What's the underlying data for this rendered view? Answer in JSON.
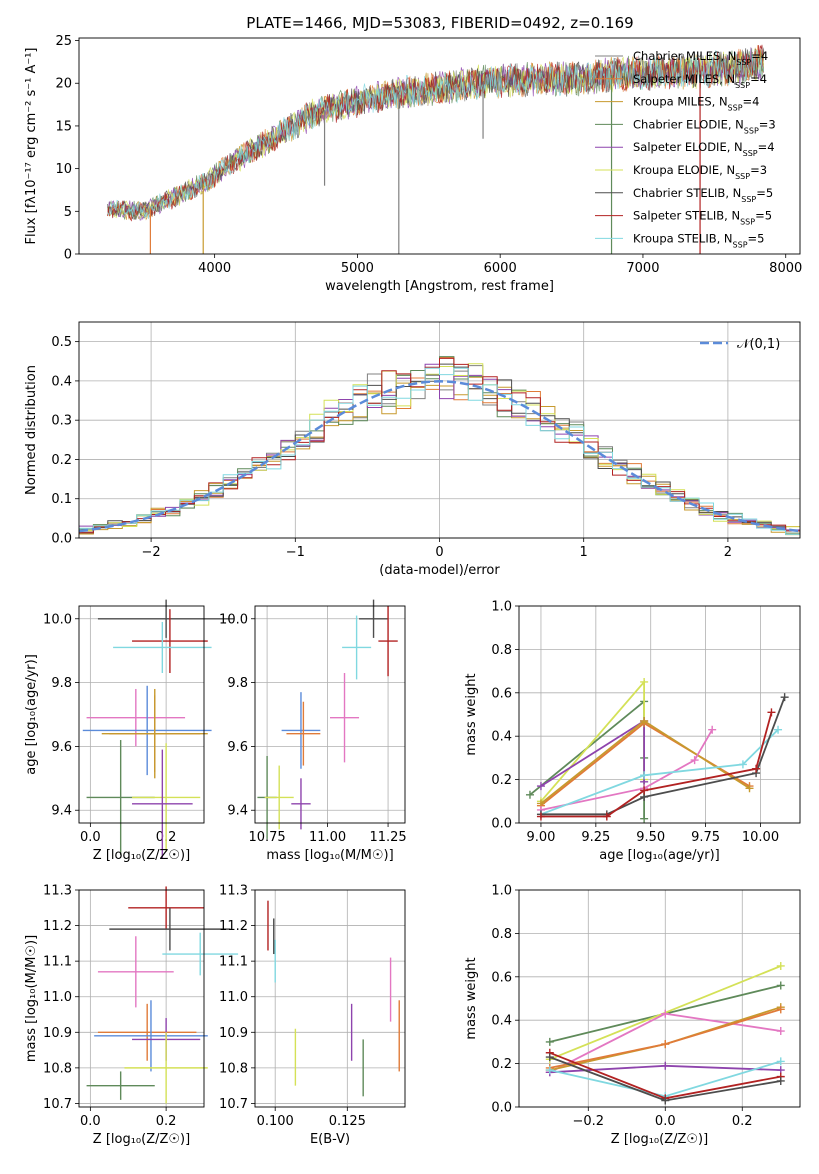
{
  "figure": {
    "title": "PLATE=1466, MJD=53083, FIBERID=0492, z=0.169"
  },
  "chart_data": [
    {
      "id": "spectrum",
      "type": "line",
      "xlabel": "wavelength [Angstrom, rest frame]",
      "ylabel": "Flux [fλ10⁻¹⁷ erg cm⁻² s⁻¹ A⁻¹]",
      "xlim": [
        3050,
        8100
      ],
      "ylim": [
        0,
        25.3
      ],
      "xticks": [
        4000,
        5000,
        6000,
        7000,
        8000
      ],
      "yticks": [
        0,
        5,
        10,
        15,
        20,
        25
      ],
      "legend_position": "upper right",
      "series": [
        {
          "name": "Chabrier MILES, N_SSP=4",
          "color": "#808080"
        },
        {
          "name": "Salpeter MILES, N_SSP=4",
          "color": "#e07b39"
        },
        {
          "name": "Kroupa MILES, N_SSP=4",
          "color": "#c79a2e"
        },
        {
          "name": "Chabrier ELODIE, N_SSP=3",
          "color": "#5f8a5a"
        },
        {
          "name": "Salpeter ELODIE, N_SSP=4",
          "color": "#8e44ad"
        },
        {
          "name": "Kroupa ELODIE, N_SSP=3",
          "color": "#d4e157"
        },
        {
          "name": "Chabrier STELIB, N_SSP=5",
          "color": "#4d4d4d"
        },
        {
          "name": "Salpeter STELIB, N_SSP=5",
          "color": "#b22222"
        },
        {
          "name": "Kroupa STELIB, N_SSP=5",
          "color": "#80d8e0"
        }
      ],
      "continuum_points": [
        [
          3250,
          5.3
        ],
        [
          3500,
          5.0
        ],
        [
          3700,
          6.5
        ],
        [
          3950,
          8.5
        ],
        [
          4100,
          10.5
        ],
        [
          4300,
          12.5
        ],
        [
          4500,
          14.5
        ],
        [
          4700,
          16.5
        ],
        [
          4900,
          17.5
        ],
        [
          5100,
          18.2
        ],
        [
          5300,
          18.8
        ],
        [
          5600,
          19.5
        ],
        [
          5900,
          20.2
        ],
        [
          6200,
          20.5
        ],
        [
          6500,
          20.5
        ],
        [
          6800,
          21.0
        ],
        [
          7100,
          21.2
        ],
        [
          7400,
          21.5
        ],
        [
          7700,
          22.0
        ],
        [
          7850,
          22.5
        ]
      ],
      "spikes": [
        {
          "x": 3550,
          "y": 0,
          "color": "#e07b39"
        },
        {
          "x": 3920,
          "y": 0,
          "color": "#c79a2e"
        },
        {
          "x": 5290,
          "y": 0,
          "color": "#808080"
        },
        {
          "x": 6780,
          "y": 0,
          "color": "#5f8a5a"
        },
        {
          "x": 7400,
          "y": 0,
          "color": "#b22222"
        },
        {
          "x": 4770,
          "y": 8,
          "color": "#808080"
        },
        {
          "x": 5880,
          "y": 13.5,
          "color": "#808080"
        }
      ]
    },
    {
      "id": "residuals",
      "type": "line",
      "xlabel": "(data-model)/error",
      "ylabel": "Normed distribution",
      "xlim": [
        -2.5,
        2.5
      ],
      "ylim": [
        0,
        0.55
      ],
      "xticks": [
        -2,
        -1,
        0,
        1,
        2
      ],
      "xticklabels": [
        "−2",
        "−1",
        "0",
        "1",
        "2"
      ],
      "yticks": [
        0.0,
        0.1,
        0.2,
        0.3,
        0.4,
        0.5
      ],
      "yticklabels": [
        "0.0",
        "0.1",
        "0.2",
        "0.3",
        "0.4",
        "0.5"
      ],
      "reference_curve": {
        "name": "𝒩(0,1)",
        "color": "#5b8bd9",
        "mean": 0,
        "sigma": 1
      },
      "histogram_bin_width": 0.1,
      "histogram_series_colors": [
        "#808080",
        "#e07b39",
        "#c79a2e",
        "#5f8a5a",
        "#8e44ad",
        "#d4e157",
        "#4d4d4d",
        "#b22222",
        "#80d8e0"
      ]
    },
    {
      "id": "age-vs-Z",
      "type": "scatter",
      "xlabel": "Z [log₁₀(Z/Z☉)]",
      "ylabel": "age  [log₁₀(age/yr)]",
      "xlim": [
        -0.03,
        0.3
      ],
      "ylim": [
        9.36,
        10.04
      ],
      "xticks": [
        0.0,
        0.2
      ],
      "xticklabels": [
        "0.0",
        "0.2"
      ],
      "yticks": [
        9.4,
        9.6,
        9.8,
        10.0
      ],
      "yticklabels": [
        "9.4",
        "9.6",
        "9.8",
        "10.0"
      ],
      "points": [
        {
          "x": 0.2,
          "xerr": 0.18,
          "y": 10.0,
          "yerr": 0.06,
          "color": "#4d4d4d"
        },
        {
          "x": 0.21,
          "xerr": 0.1,
          "y": 9.93,
          "yerr": 0.1,
          "color": "#b22222"
        },
        {
          "x": 0.19,
          "xerr": 0.13,
          "y": 9.91,
          "yerr": 0.08,
          "color": "#80d8e0"
        },
        {
          "x": 0.12,
          "xerr": 0.13,
          "y": 9.69,
          "yerr": 0.09,
          "color": "#e377c2"
        },
        {
          "x": 0.15,
          "xerr": 0.17,
          "y": 9.65,
          "yerr": 0.14,
          "color": "#5b8bd9"
        },
        {
          "x": 0.17,
          "xerr": 0.12,
          "y": 9.64,
          "yerr": 0.12,
          "color": "#e07b39"
        },
        {
          "x": 0.17,
          "xerr": 0.14,
          "y": 9.64,
          "yerr": 0.14,
          "color": "#c79a2e"
        },
        {
          "x": 0.08,
          "xerr": 0.09,
          "y": 9.44,
          "yerr": 0.18,
          "color": "#5f8a5a"
        },
        {
          "x": 0.2,
          "xerr": 0.09,
          "y": 9.44,
          "yerr": 0.17,
          "color": "#d4e157"
        },
        {
          "x": 0.19,
          "xerr": 0.08,
          "y": 9.42,
          "yerr": 0.17,
          "color": "#8e44ad"
        }
      ]
    },
    {
      "id": "age-vs-mass",
      "type": "scatter",
      "xlabel": "mass [log₁₀(M/M☉)]",
      "ylabel": "",
      "xlim": [
        10.7,
        11.32
      ],
      "ylim": [
        9.36,
        10.04
      ],
      "xticks": [
        10.75,
        11.0,
        11.25
      ],
      "xticklabels": [
        "10.75",
        "11.00",
        "11.25"
      ],
      "yticks": [
        9.4,
        9.6,
        9.8,
        10.0
      ],
      "yticklabels": [
        "9.4",
        "9.6",
        "9.8",
        "10.0"
      ],
      "points": [
        {
          "x": 11.19,
          "xerr": 0.06,
          "y": 10.0,
          "yerr": 0.06,
          "color": "#4d4d4d"
        },
        {
          "x": 11.25,
          "xerr": 0.04,
          "y": 9.93,
          "yerr": 0.11,
          "color": "#b22222"
        },
        {
          "x": 11.12,
          "xerr": 0.06,
          "y": 9.91,
          "yerr": 0.1,
          "color": "#80d8e0"
        },
        {
          "x": 11.07,
          "xerr": 0.06,
          "y": 9.69,
          "yerr": 0.14,
          "color": "#e377c2"
        },
        {
          "x": 10.89,
          "xerr": 0.08,
          "y": 9.65,
          "yerr": 0.12,
          "color": "#5b8bd9"
        },
        {
          "x": 10.9,
          "xerr": 0.07,
          "y": 9.64,
          "yerr": 0.1,
          "color": "#e07b39"
        },
        {
          "x": 10.75,
          "xerr": 0.04,
          "y": 9.44,
          "yerr": 0.13,
          "color": "#5f8a5a"
        },
        {
          "x": 10.8,
          "xerr": 0.06,
          "y": 9.44,
          "yerr": 0.1,
          "color": "#d4e157"
        },
        {
          "x": 10.89,
          "xerr": 0.04,
          "y": 9.42,
          "yerr": 0.08,
          "color": "#8e44ad"
        }
      ]
    },
    {
      "id": "massweight-vs-age",
      "type": "line",
      "xlabel": "age  [log₁₀(age/yr)]",
      "ylabel": "mass weight",
      "xlim": [
        8.9,
        10.18
      ],
      "ylim": [
        0,
        1.0
      ],
      "xticks": [
        9.0,
        9.25,
        9.5,
        9.75,
        10.0
      ],
      "xticklabels": [
        "9.00",
        "9.25",
        "9.50",
        "9.75",
        "10.00"
      ],
      "yticks": [
        0,
        0.2,
        0.4,
        0.6,
        0.8,
        1.0
      ],
      "yticklabels": [
        "0.0",
        "0.2",
        "0.4",
        "0.6",
        "0.8",
        "1.0"
      ],
      "series": [
        {
          "color": "#5f8a5a",
          "x": [
            8.95,
            9.47,
            9.47,
            9.47
          ],
          "y": [
            0.13,
            0.56,
            0.3,
            0.02
          ]
        },
        {
          "color": "#d4e157",
          "x": [
            9.0,
            9.47,
            9.47
          ],
          "y": [
            0.1,
            0.65,
            0.2
          ]
        },
        {
          "color": "#8e44ad",
          "x": [
            9.0,
            9.47,
            9.47
          ],
          "y": [
            0.17,
            0.47,
            0.19
          ]
        },
        {
          "color": "#e07b39",
          "x": [
            9.0,
            9.47,
            9.95
          ],
          "y": [
            0.08,
            0.46,
            0.17
          ]
        },
        {
          "color": "#c79a2e",
          "x": [
            9.0,
            9.47,
            9.95
          ],
          "y": [
            0.09,
            0.47,
            0.16
          ]
        },
        {
          "color": "#e377c2",
          "x": [
            9.0,
            9.47,
            9.7,
            9.78
          ],
          "y": [
            0.06,
            0.16,
            0.29,
            0.43
          ]
        },
        {
          "color": "#80d8e0",
          "x": [
            9.0,
            9.47,
            9.92,
            10.08
          ],
          "y": [
            0.04,
            0.22,
            0.27,
            0.43
          ]
        },
        {
          "color": "#4d4d4d",
          "x": [
            9.0,
            9.3,
            9.47,
            9.98,
            10.11
          ],
          "y": [
            0.04,
            0.04,
            0.12,
            0.23,
            0.58
          ]
        },
        {
          "color": "#b22222",
          "x": [
            9.0,
            9.3,
            9.47,
            9.98,
            10.05
          ],
          "y": [
            0.03,
            0.03,
            0.15,
            0.25,
            0.51
          ]
        }
      ]
    },
    {
      "id": "mass-vs-Z",
      "type": "scatter",
      "xlabel": "Z [log₁₀(Z/Z☉)]",
      "ylabel": "mass [log₁₀(M/M☉)]",
      "xlim": [
        -0.03,
        0.3
      ],
      "ylim": [
        10.69,
        11.3
      ],
      "xticks": [
        0.0,
        0.2
      ],
      "xticklabels": [
        "0.0",
        "0.2"
      ],
      "yticks": [
        10.7,
        10.8,
        10.9,
        11.0,
        11.1,
        11.2,
        11.3
      ],
      "yticklabels": [
        "10.7",
        "10.8",
        "10.9",
        "11.0",
        "11.1",
        "11.2",
        "11.3"
      ],
      "points": [
        {
          "x": 0.2,
          "xerr": 0.1,
          "y": 11.25,
          "yerr": 0.06,
          "color": "#b22222"
        },
        {
          "x": 0.21,
          "xerr": 0.16,
          "y": 11.19,
          "yerr": 0.06,
          "color": "#4d4d4d"
        },
        {
          "x": 0.29,
          "xerr": 0.1,
          "y": 11.12,
          "yerr": 0.06,
          "color": "#80d8e0"
        },
        {
          "x": 0.12,
          "xerr": 0.1,
          "y": 11.07,
          "yerr": 0.1,
          "color": "#e377c2"
        },
        {
          "x": 0.15,
          "xerr": 0.13,
          "y": 10.9,
          "yerr": 0.08,
          "color": "#e07b39"
        },
        {
          "x": 0.16,
          "xerr": 0.15,
          "y": 10.89,
          "yerr": 0.1,
          "color": "#5b8bd9"
        },
        {
          "x": 0.2,
          "xerr": 0.09,
          "y": 10.88,
          "yerr": 0.06,
          "color": "#8e44ad"
        },
        {
          "x": 0.2,
          "xerr": 0.11,
          "y": 10.8,
          "yerr": 0.1,
          "color": "#d4e157"
        },
        {
          "x": 0.08,
          "xerr": 0.09,
          "y": 10.75,
          "yerr": 0.04,
          "color": "#5f8a5a"
        }
      ]
    },
    {
      "id": "mass-vs-EBV",
      "type": "scatter",
      "xlabel": "E(B-V)",
      "ylabel": "",
      "xlim": [
        0.093,
        0.145
      ],
      "ylim": [
        10.69,
        11.3
      ],
      "xticks": [
        0.1,
        0.125
      ],
      "xticklabels": [
        "0.100",
        "0.125"
      ],
      "yticks": [
        10.7,
        10.8,
        10.9,
        11.0,
        11.1,
        11.2,
        11.3
      ],
      "yticklabels": [
        "10.7",
        "10.8",
        "10.9",
        "11.0",
        "11.1",
        "11.2",
        "11.3"
      ],
      "points": [
        {
          "x": 0.0975,
          "y": 11.2,
          "yerr": 0.07,
          "color": "#b22222"
        },
        {
          "x": 0.0995,
          "y": 11.17,
          "yerr": 0.05,
          "color": "#4d4d4d"
        },
        {
          "x": 0.1,
          "y": 11.1,
          "yerr": 0.06,
          "color": "#80d8e0"
        },
        {
          "x": 0.107,
          "y": 10.83,
          "yerr": 0.08,
          "color": "#d4e157"
        },
        {
          "x": 0.1265,
          "y": 10.9,
          "yerr": 0.08,
          "color": "#8e44ad"
        },
        {
          "x": 0.1305,
          "y": 10.8,
          "yerr": 0.08,
          "color": "#5f8a5a"
        },
        {
          "x": 0.14,
          "y": 11.02,
          "yerr": 0.09,
          "color": "#e377c2"
        },
        {
          "x": 0.143,
          "y": 10.89,
          "yerr": 0.1,
          "color": "#e07b39"
        }
      ]
    },
    {
      "id": "massweight-vs-Z",
      "type": "line",
      "xlabel": "Z [log₁₀(Z/Z☉)]",
      "ylabel": "mass weight",
      "xlim": [
        -0.38,
        0.35
      ],
      "ylim": [
        0,
        1.0
      ],
      "xticks": [
        -0.2,
        0.0,
        0.2
      ],
      "xticklabels": [
        "−0.2",
        "0.0",
        "0.2"
      ],
      "yticks": [
        0,
        0.2,
        0.4,
        0.6,
        0.8,
        1.0
      ],
      "yticklabels": [
        "0.0",
        "0.2",
        "0.4",
        "0.6",
        "0.8",
        "1.0"
      ],
      "series": [
        {
          "color": "#5f8a5a",
          "x": [
            -0.3,
            0.3
          ],
          "y": [
            0.3,
            0.56
          ]
        },
        {
          "color": "#d4e157",
          "x": [
            -0.3,
            0.3
          ],
          "y": [
            0.22,
            0.65
          ]
        },
        {
          "color": "#e377c2",
          "x": [
            -0.3,
            0.0,
            0.3
          ],
          "y": [
            0.16,
            0.43,
            0.35
          ]
        },
        {
          "color": "#c79a2e",
          "x": [
            -0.3,
            0.0,
            0.3
          ],
          "y": [
            0.17,
            0.29,
            0.46
          ]
        },
        {
          "color": "#e07b39",
          "x": [
            -0.3,
            0.0,
            0.3
          ],
          "y": [
            0.18,
            0.29,
            0.45
          ]
        },
        {
          "color": "#8e44ad",
          "x": [
            -0.3,
            0.0,
            0.3
          ],
          "y": [
            0.16,
            0.19,
            0.17
          ]
        },
        {
          "color": "#80d8e0",
          "x": [
            -0.3,
            0.0,
            0.3
          ],
          "y": [
            0.17,
            0.05,
            0.21
          ]
        },
        {
          "color": "#b22222",
          "x": [
            -0.3,
            0.0,
            0.3
          ],
          "y": [
            0.25,
            0.04,
            0.14
          ]
        },
        {
          "color": "#4d4d4d",
          "x": [
            -0.3,
            0.0,
            0.3
          ],
          "y": [
            0.23,
            0.03,
            0.12
          ]
        }
      ]
    }
  ]
}
